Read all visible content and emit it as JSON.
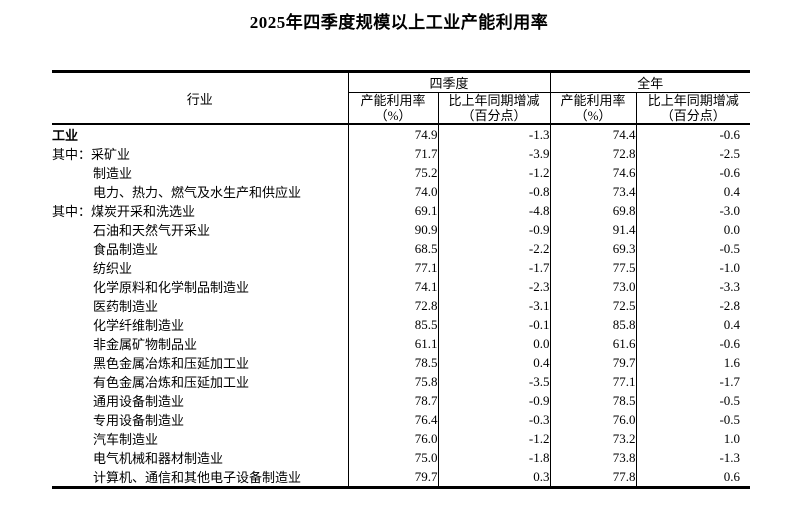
{
  "page_title": "2025年四季度规模以上工业产能利用率",
  "colors": {
    "background": "#ffffff",
    "text": "#000000",
    "border": "#000000"
  },
  "table": {
    "col_industry": "行业",
    "group_q4": "四季度",
    "group_year": "全年",
    "sub_util": "产能利用率",
    "sub_util_unit": "（%）",
    "sub_change": "比上年同期增减",
    "sub_change_unit": "（百分点）",
    "rows": [
      {
        "prefix": "",
        "name": "工业",
        "bold": true,
        "indent": false,
        "q4_util": "74.9",
        "q4_chg": "-1.3",
        "yr_util": "74.4",
        "yr_chg": "-0.6"
      },
      {
        "prefix": "其中：",
        "name": "采矿业",
        "bold": false,
        "indent": false,
        "q4_util": "71.7",
        "q4_chg": "-3.9",
        "yr_util": "72.8",
        "yr_chg": "-2.5"
      },
      {
        "prefix": "",
        "name": "制造业",
        "bold": false,
        "indent": true,
        "q4_util": "75.2",
        "q4_chg": "-1.2",
        "yr_util": "74.6",
        "yr_chg": "-0.6"
      },
      {
        "prefix": "",
        "name": "电力、热力、燃气及水生产和供应业",
        "bold": false,
        "indent": true,
        "q4_util": "74.0",
        "q4_chg": "-0.8",
        "yr_util": "73.4",
        "yr_chg": "0.4"
      },
      {
        "prefix": "其中：",
        "name": "煤炭开采和洗选业",
        "bold": false,
        "indent": false,
        "q4_util": "69.1",
        "q4_chg": "-4.8",
        "yr_util": "69.8",
        "yr_chg": "-3.0"
      },
      {
        "prefix": "",
        "name": "石油和天然气开采业",
        "bold": false,
        "indent": true,
        "q4_util": "90.9",
        "q4_chg": "-0.9",
        "yr_util": "91.4",
        "yr_chg": "0.0"
      },
      {
        "prefix": "",
        "name": "食品制造业",
        "bold": false,
        "indent": true,
        "q4_util": "68.5",
        "q4_chg": "-2.2",
        "yr_util": "69.3",
        "yr_chg": "-0.5"
      },
      {
        "prefix": "",
        "name": "纺织业",
        "bold": false,
        "indent": true,
        "q4_util": "77.1",
        "q4_chg": "-1.7",
        "yr_util": "77.5",
        "yr_chg": "-1.0"
      },
      {
        "prefix": "",
        "name": "化学原料和化学制品制造业",
        "bold": false,
        "indent": true,
        "q4_util": "74.1",
        "q4_chg": "-2.3",
        "yr_util": "73.0",
        "yr_chg": "-3.3"
      },
      {
        "prefix": "",
        "name": "医药制造业",
        "bold": false,
        "indent": true,
        "q4_util": "72.8",
        "q4_chg": "-3.1",
        "yr_util": "72.5",
        "yr_chg": "-2.8"
      },
      {
        "prefix": "",
        "name": "化学纤维制造业",
        "bold": false,
        "indent": true,
        "q4_util": "85.5",
        "q4_chg": "-0.1",
        "yr_util": "85.8",
        "yr_chg": "0.4"
      },
      {
        "prefix": "",
        "name": "非金属矿物制品业",
        "bold": false,
        "indent": true,
        "q4_util": "61.1",
        "q4_chg": "0.0",
        "yr_util": "61.6",
        "yr_chg": "-0.6"
      },
      {
        "prefix": "",
        "name": "黑色金属冶炼和压延加工业",
        "bold": false,
        "indent": true,
        "q4_util": "78.5",
        "q4_chg": "0.4",
        "yr_util": "79.7",
        "yr_chg": "1.6"
      },
      {
        "prefix": "",
        "name": "有色金属冶炼和压延加工业",
        "bold": false,
        "indent": true,
        "q4_util": "75.8",
        "q4_chg": "-3.5",
        "yr_util": "77.1",
        "yr_chg": "-1.7"
      },
      {
        "prefix": "",
        "name": "通用设备制造业",
        "bold": false,
        "indent": true,
        "q4_util": "78.7",
        "q4_chg": "-0.9",
        "yr_util": "78.5",
        "yr_chg": "-0.5"
      },
      {
        "prefix": "",
        "name": "专用设备制造业",
        "bold": false,
        "indent": true,
        "q4_util": "76.4",
        "q4_chg": "-0.3",
        "yr_util": "76.0",
        "yr_chg": "-0.5"
      },
      {
        "prefix": "",
        "name": "汽车制造业",
        "bold": false,
        "indent": true,
        "q4_util": "76.0",
        "q4_chg": "-1.2",
        "yr_util": "73.2",
        "yr_chg": "1.0"
      },
      {
        "prefix": "",
        "name": "电气机械和器材制造业",
        "bold": false,
        "indent": true,
        "q4_util": "75.0",
        "q4_chg": "-1.8",
        "yr_util": "73.8",
        "yr_chg": "-1.3"
      },
      {
        "prefix": "",
        "name": "计算机、通信和其他电子设备制造业",
        "bold": false,
        "indent": true,
        "q4_util": "79.7",
        "q4_chg": "0.3",
        "yr_util": "77.8",
        "yr_chg": "0.6"
      }
    ]
  }
}
